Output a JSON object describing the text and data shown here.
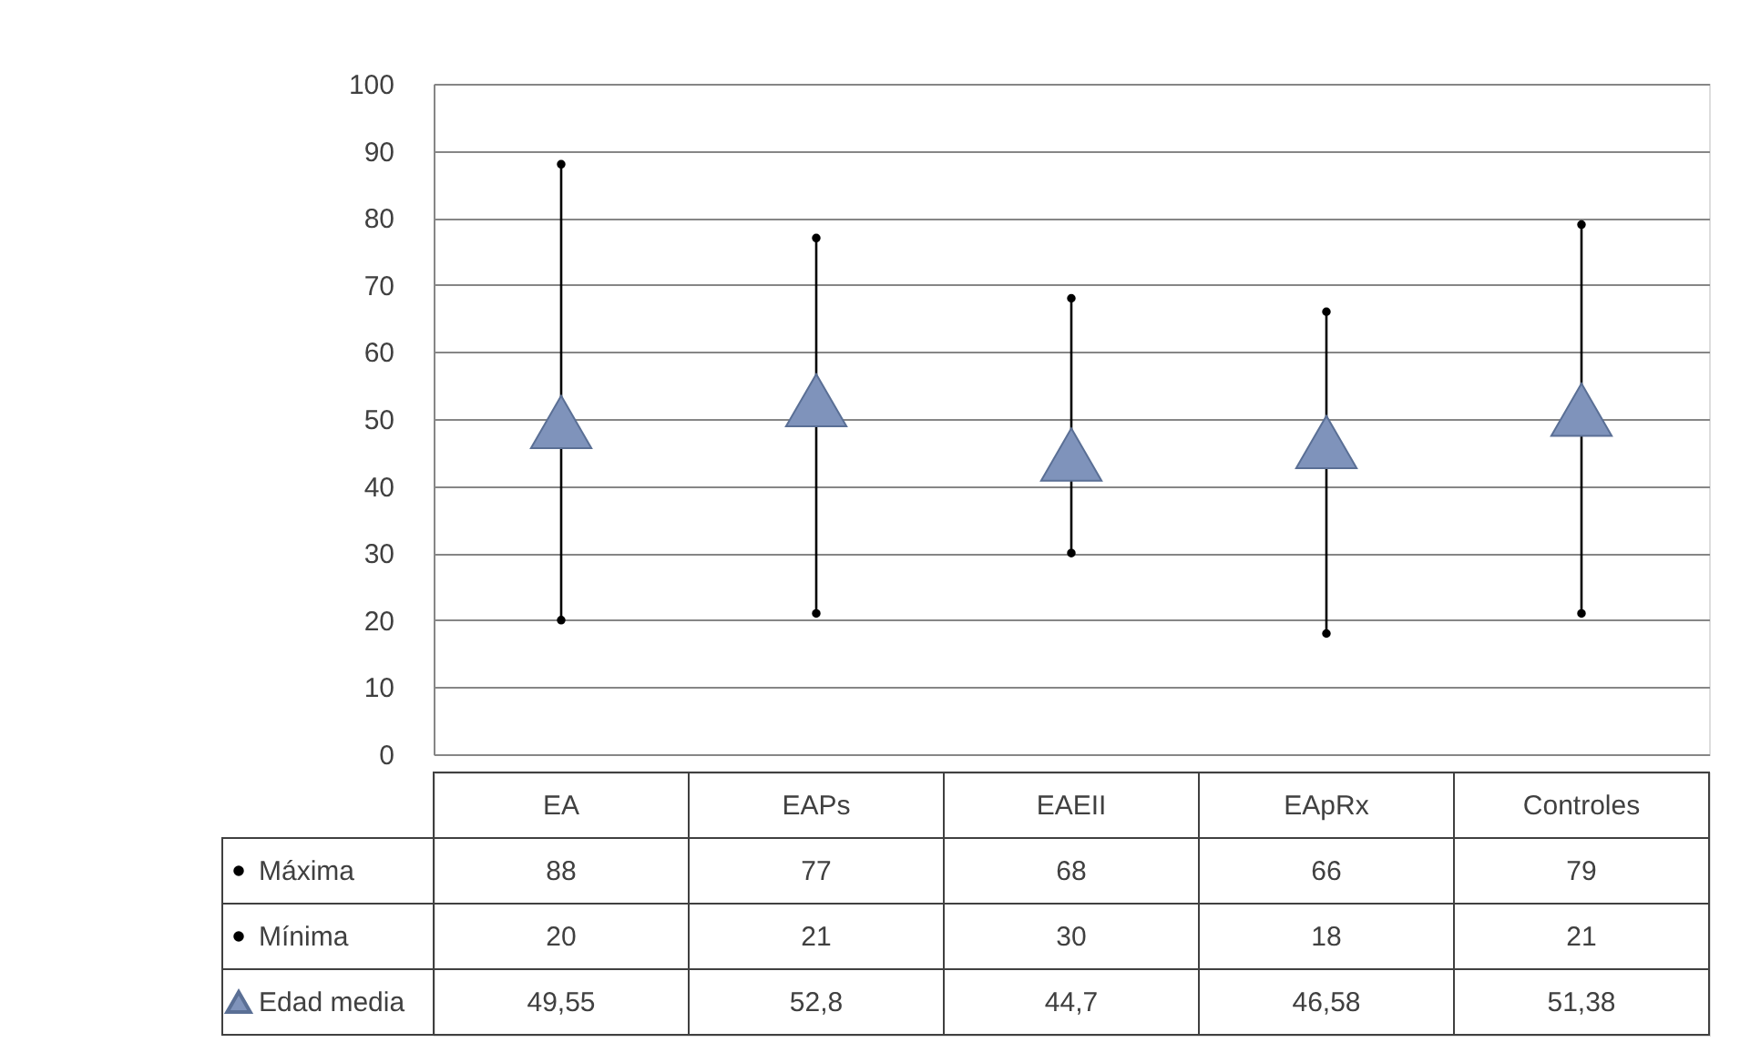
{
  "chart_data": {
    "type": "scatter",
    "categories": [
      "EA",
      "EAPs",
      "EAEII",
      "EApRx",
      "Controles"
    ],
    "series": [
      {
        "name": "Máxima",
        "color": "#000000",
        "marker": "circle",
        "values": [
          88,
          77,
          68,
          66,
          79
        ],
        "value_labels": [
          "88",
          "77",
          "68",
          "66",
          "79"
        ]
      },
      {
        "name": "Mínima",
        "color": "#000000",
        "marker": "circle",
        "values": [
          20,
          21,
          30,
          18,
          21
        ],
        "value_labels": [
          "20",
          "21",
          "30",
          "18",
          "21"
        ]
      },
      {
        "name": "Edad media",
        "color": "#7f93bb",
        "marker": "triangle",
        "values": [
          49.55,
          52.8,
          44.7,
          46.58,
          51.38
        ],
        "value_labels": [
          "49,55",
          "52,8",
          "44,7",
          "46,58",
          "51,38"
        ]
      }
    ],
    "ylim": [
      0,
      100
    ],
    "yticks": [
      0,
      10,
      20,
      30,
      40,
      50,
      60,
      70,
      80,
      90,
      100
    ],
    "grid": "y",
    "legend": "bottom left"
  }
}
